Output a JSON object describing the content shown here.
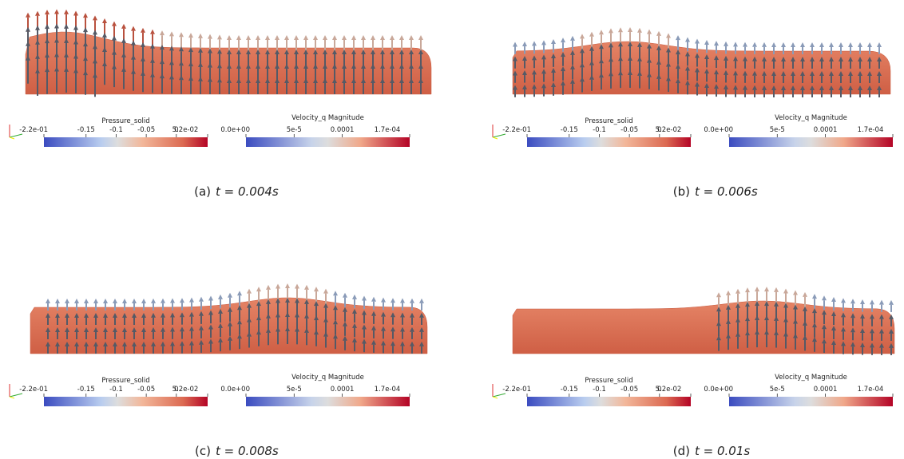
{
  "panels": [
    {
      "label": "(a)",
      "caption": "t = 0.004s",
      "colorbars": [
        {
          "title": "Pressure_solid",
          "ticks": [
            "-2.2e-01",
            "-0.15",
            "-0.1",
            "-0.05",
            "0",
            "5.2e-02"
          ]
        },
        {
          "title": "Velocity_q Magnitude",
          "ticks": [
            "0.0e+00",
            "5e-5",
            "0.0001",
            "1.7e-04"
          ]
        }
      ]
    },
    {
      "label": "(b)",
      "caption": "t = 0.006s",
      "colorbars": [
        {
          "title": "Pressure_solid",
          "ticks": [
            "-2.2e-01",
            "-0.15",
            "-0.1",
            "-0.05",
            "0",
            "5.2e-02"
          ]
        },
        {
          "title": "Velocity_q Magnitude",
          "ticks": [
            "0.0e+00",
            "5e-5",
            "0.0001",
            "1.7e-04"
          ]
        }
      ]
    },
    {
      "label": "(c)",
      "caption": "t = 0.008s",
      "colorbars": [
        {
          "title": "Pressure_solid",
          "ticks": [
            "-2.2e-01",
            "-0.15",
            "-0.1",
            "-0.05",
            "0",
            "5.2e-02"
          ]
        },
        {
          "title": "Velocity_q Magnitude",
          "ticks": [
            "0.0e+00",
            "5e-5",
            "0.0001",
            "1.7e-04"
          ]
        }
      ]
    },
    {
      "label": "(d)",
      "caption": "t = 0.01s",
      "colorbars": [
        {
          "title": "Pressure_solid",
          "ticks": [
            "-2.2e-01",
            "-0.15",
            "-0.1",
            "-0.05",
            "0",
            "5.2e-02"
          ]
        },
        {
          "title": "Velocity_q Magnitude",
          "ticks": [
            "0.0e+00",
            "5e-5",
            "0.0001",
            "1.7e-04"
          ]
        }
      ]
    }
  ]
}
